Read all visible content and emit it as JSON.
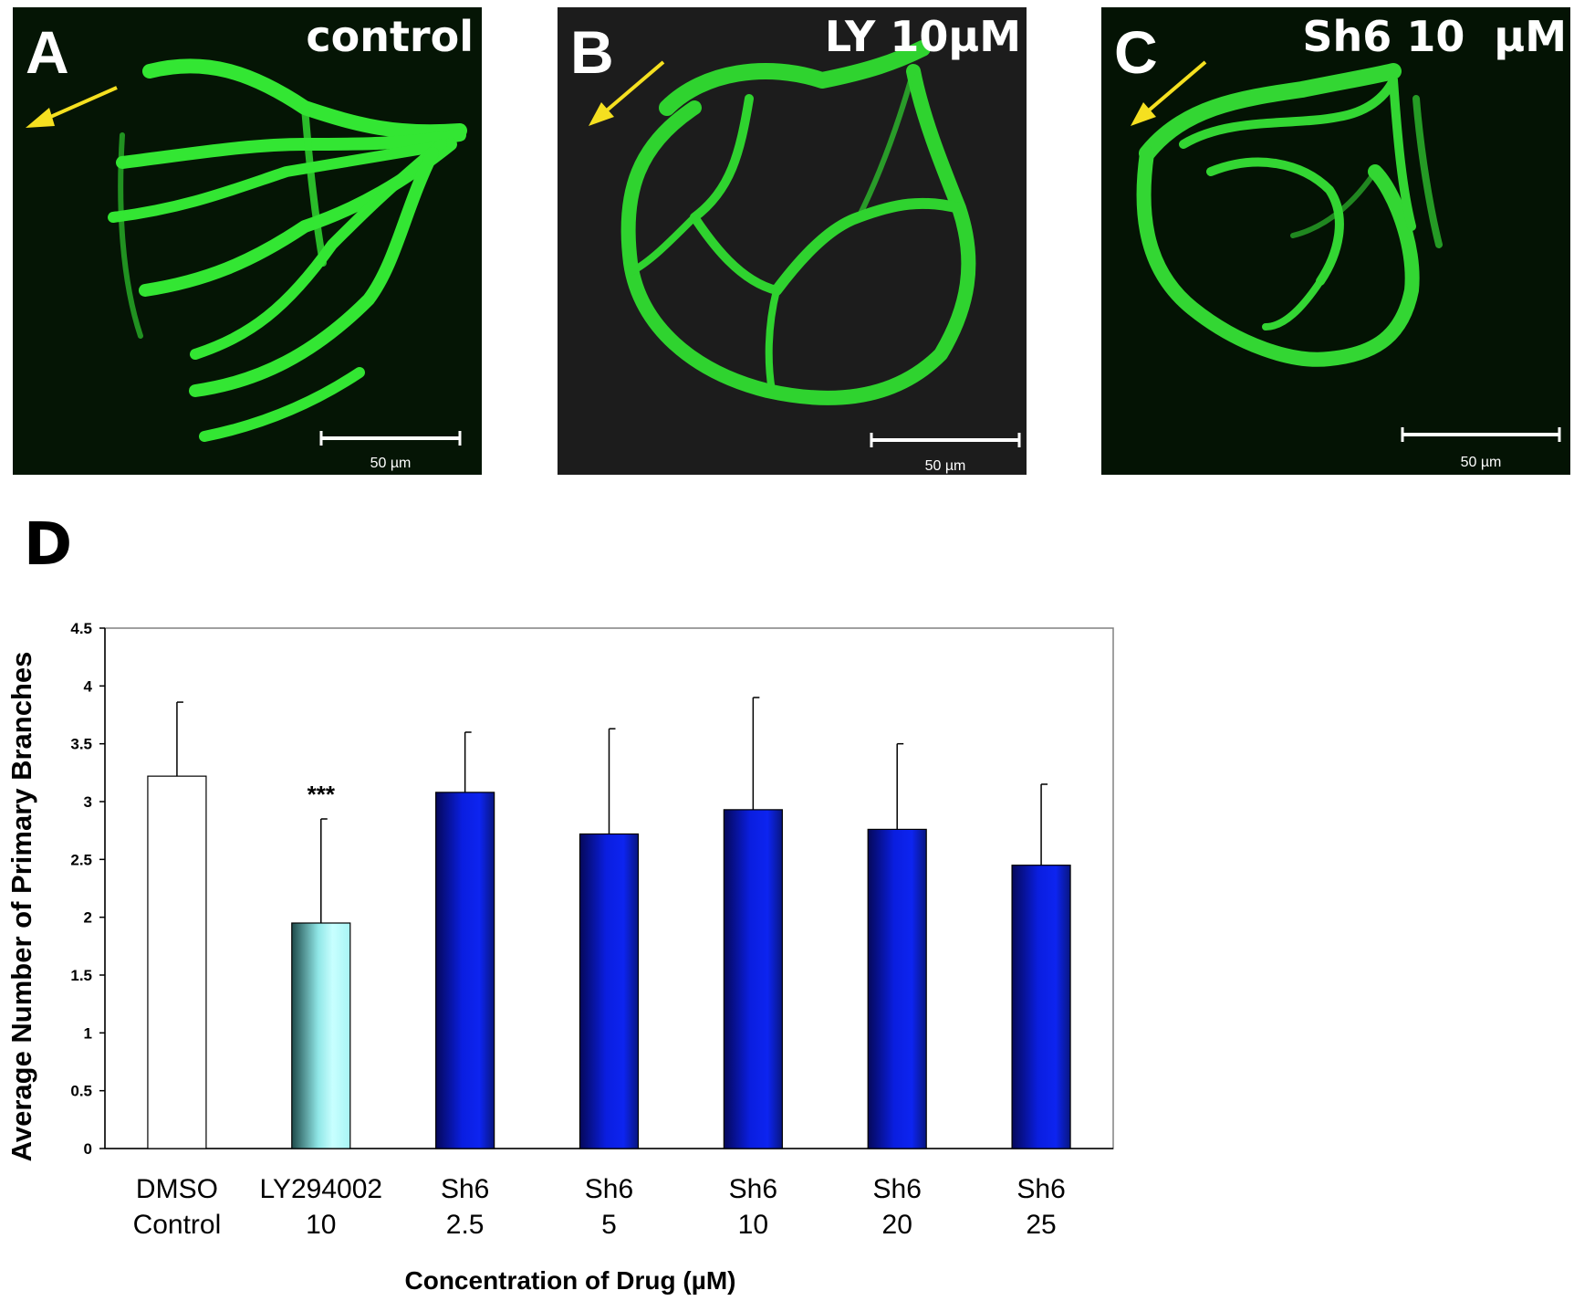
{
  "panels": [
    {
      "letter": "A",
      "label": "control",
      "scale_label": "50 µm",
      "bg": "#051505",
      "fluor": "#33e633"
    },
    {
      "letter": "B",
      "label": "LY 10µM",
      "scale_label": "50 µm",
      "bg": "#1c1c1c",
      "fluor": "#2fd32f"
    },
    {
      "letter": "C",
      "label": "Sh6 10  µM",
      "scale_label": "50 µm",
      "bg": "#041304",
      "fluor": "#33d633"
    }
  ],
  "arrow_color": "#f5e020",
  "chart_panel_letter": "D",
  "chart_data": {
    "type": "bar",
    "categories": [
      [
        "DMSO",
        "Control"
      ],
      [
        "LY294002",
        "10"
      ],
      [
        "Sh6",
        "2.5"
      ],
      [
        "Sh6",
        "5"
      ],
      [
        "Sh6",
        "10"
      ],
      [
        "Sh6",
        "20"
      ],
      [
        "Sh6",
        "25"
      ]
    ],
    "values": [
      3.22,
      1.95,
      3.08,
      2.72,
      2.93,
      2.76,
      2.45
    ],
    "errors": [
      0.64,
      0.9,
      0.52,
      0.91,
      0.97,
      0.74,
      0.7
    ],
    "bar_styles": [
      "white",
      "cyan",
      "blue",
      "blue",
      "blue",
      "blue",
      "blue"
    ],
    "colors": {
      "white": "#ffffff",
      "cyan": "#a8f5f5",
      "blue": "#0a1ee0"
    },
    "annotations": [
      {
        "index": 1,
        "text": "***"
      }
    ],
    "xlabel": "Concentration of Drug (µM)",
    "ylabel": "Average Number of Primary Branches",
    "ylim": [
      0,
      4.5
    ],
    "yticks": [
      "0",
      "0.5",
      "1",
      "1.5",
      "2",
      "2.5",
      "3",
      "3.5",
      "4",
      "4.5"
    ],
    "grid": false
  }
}
